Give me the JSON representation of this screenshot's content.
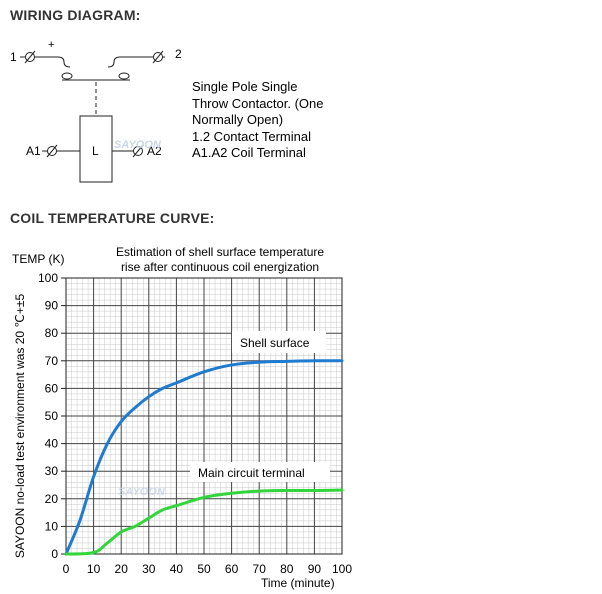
{
  "headings": {
    "wiring": "WIRING DIAGRAM:",
    "curve": "COIL TEMPERATURE CURVE:"
  },
  "wiring": {
    "terminal_1": "1",
    "terminal_2": "2",
    "plus_sign": "+",
    "coil_label": "L",
    "terminal_a1": "A1",
    "terminal_a2": "A2",
    "description": [
      "Single Pole Single",
      "Throw Contactor. (One",
      "Normally Open)",
      "1.2 Contact Terminal",
      "A1.A2 Coil Terminal"
    ],
    "watermark": "SAYOON"
  },
  "chart_data": {
    "type": "line",
    "title": [
      "Estimation of shell surface temperature",
      "rise after continuous coil energization"
    ],
    "ylabel": "TEMP (K)",
    "xlabel": "Time (minute)",
    "side_note": "SAYOON no-load test environment was 20  ℃+±5",
    "watermark": "SAYOON",
    "xlim": [
      0,
      100
    ],
    "ylim": [
      0,
      100
    ],
    "xticks": [
      0,
      10,
      20,
      30,
      40,
      50,
      60,
      70,
      80,
      90,
      100
    ],
    "yticks": [
      0,
      10,
      20,
      30,
      40,
      50,
      60,
      70,
      80,
      90,
      100
    ],
    "grid": true,
    "series": [
      {
        "name": "Shell surface",
        "color": "#1f7bd0",
        "x": [
          0,
          5,
          10,
          15,
          20,
          25,
          30,
          35,
          40,
          50,
          60,
          70,
          80,
          90,
          100
        ],
        "y": [
          0,
          12,
          28,
          40,
          48,
          53,
          57,
          60,
          62,
          66,
          68.5,
          69.5,
          69.8,
          70,
          70
        ]
      },
      {
        "name": "Main circuit terminal",
        "color": "#33d63a",
        "x": [
          0,
          10,
          15,
          20,
          25,
          30,
          35,
          40,
          50,
          60,
          70,
          80,
          90,
          100
        ],
        "y": [
          0,
          0.5,
          4,
          8,
          10,
          13,
          16,
          17.5,
          20.5,
          22,
          22.8,
          23,
          23,
          23.2
        ]
      }
    ]
  }
}
